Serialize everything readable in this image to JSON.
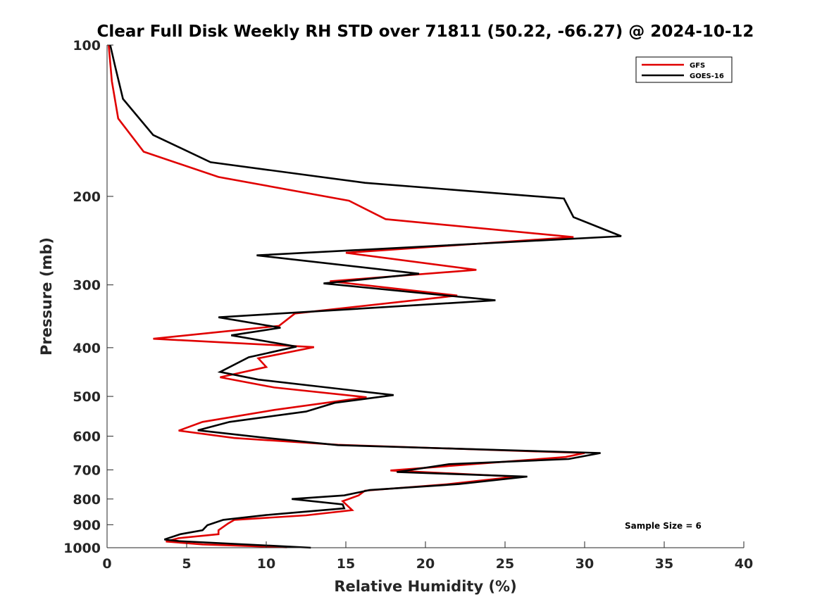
{
  "chart_data": {
    "type": "line",
    "title": "Clear Full Disk Weekly RH STD over 71811 (50.22, -66.27) @ 2024-10-12",
    "xlabel": "Relative Humidity (%)",
    "ylabel": "Pressure (mb)",
    "xlim": [
      0,
      40
    ],
    "ylim": [
      100,
      1000
    ],
    "yscale": "log",
    "y_reversed": true,
    "x_ticks": [
      "0",
      "5",
      "10",
      "15",
      "20",
      "25",
      "30",
      "35",
      "40"
    ],
    "y_ticks": [
      "100",
      "200",
      "300",
      "400",
      "500",
      "600",
      "700",
      "800",
      "900",
      "1000"
    ],
    "legend_position": "top-right",
    "annotation": "Sample Size = 6",
    "series": [
      {
        "name": "GFS",
        "color": "#e00000",
        "points": [
          [
            0.1,
            100
          ],
          [
            0.3,
            118
          ],
          [
            0.7,
            140
          ],
          [
            2.3,
            163
          ],
          [
            7.0,
            183
          ],
          [
            15.2,
            204
          ],
          [
            17.5,
            222
          ],
          [
            29.3,
            241
          ],
          [
            15.0,
            259
          ],
          [
            23.2,
            280
          ],
          [
            14.0,
            295
          ],
          [
            22.0,
            315
          ],
          [
            11.8,
            342
          ],
          [
            10.8,
            362
          ],
          [
            2.9,
            384
          ],
          [
            13.0,
            399
          ],
          [
            9.5,
            420
          ],
          [
            10.0,
            437
          ],
          [
            7.1,
            458
          ],
          [
            10.5,
            480
          ],
          [
            16.3,
            502
          ],
          [
            10.5,
            532
          ],
          [
            6.0,
            562
          ],
          [
            4.5,
            585
          ],
          [
            8.0,
            605
          ],
          [
            14.5,
            624
          ],
          [
            30.0,
            648
          ],
          [
            28.8,
            660
          ],
          [
            17.8,
            702
          ],
          [
            25.7,
            722
          ],
          [
            21.5,
            747
          ],
          [
            16.2,
            770
          ],
          [
            15.8,
            787
          ],
          [
            14.8,
            808
          ],
          [
            15.4,
            842
          ],
          [
            12.5,
            862
          ],
          [
            8.0,
            880
          ],
          [
            7.6,
            895
          ],
          [
            7.0,
            923
          ],
          [
            7.0,
            940
          ],
          [
            4.5,
            957
          ],
          [
            3.7,
            972
          ],
          [
            6.0,
            985
          ],
          [
            11.3,
            998
          ]
        ]
      },
      {
        "name": "GOES-16",
        "color": "#000000",
        "points": [
          [
            0.2,
            100
          ],
          [
            0.5,
            110
          ],
          [
            1.0,
            128
          ],
          [
            2.9,
            151
          ],
          [
            6.5,
            171
          ],
          [
            16.2,
            188
          ],
          [
            28.7,
            202
          ],
          [
            29.3,
            220
          ],
          [
            32.3,
            240
          ],
          [
            9.4,
            262
          ],
          [
            19.6,
            285
          ],
          [
            13.6,
            298
          ],
          [
            24.4,
            322
          ],
          [
            7.0,
            348
          ],
          [
            10.9,
            365
          ],
          [
            7.8,
            378
          ],
          [
            11.9,
            398
          ],
          [
            8.9,
            418
          ],
          [
            7.1,
            447
          ],
          [
            9.5,
            463
          ],
          [
            18.0,
            497
          ],
          [
            14.3,
            515
          ],
          [
            12.5,
            536
          ],
          [
            7.7,
            562
          ],
          [
            5.7,
            584
          ],
          [
            9.6,
            603
          ],
          [
            14.5,
            625
          ],
          [
            31.0,
            648
          ],
          [
            29.0,
            666
          ],
          [
            21.5,
            682
          ],
          [
            18.2,
            707
          ],
          [
            26.4,
            722
          ],
          [
            22.1,
            747
          ],
          [
            16.5,
            768
          ],
          [
            14.9,
            787
          ],
          [
            11.6,
            800
          ],
          [
            14.8,
            820
          ],
          [
            14.9,
            835
          ],
          [
            10.0,
            861
          ],
          [
            7.3,
            880
          ],
          [
            6.3,
            902
          ],
          [
            6.0,
            923
          ],
          [
            4.6,
            940
          ],
          [
            3.6,
            963
          ],
          [
            4.5,
            970
          ],
          [
            12.8,
            1000
          ]
        ]
      }
    ]
  }
}
